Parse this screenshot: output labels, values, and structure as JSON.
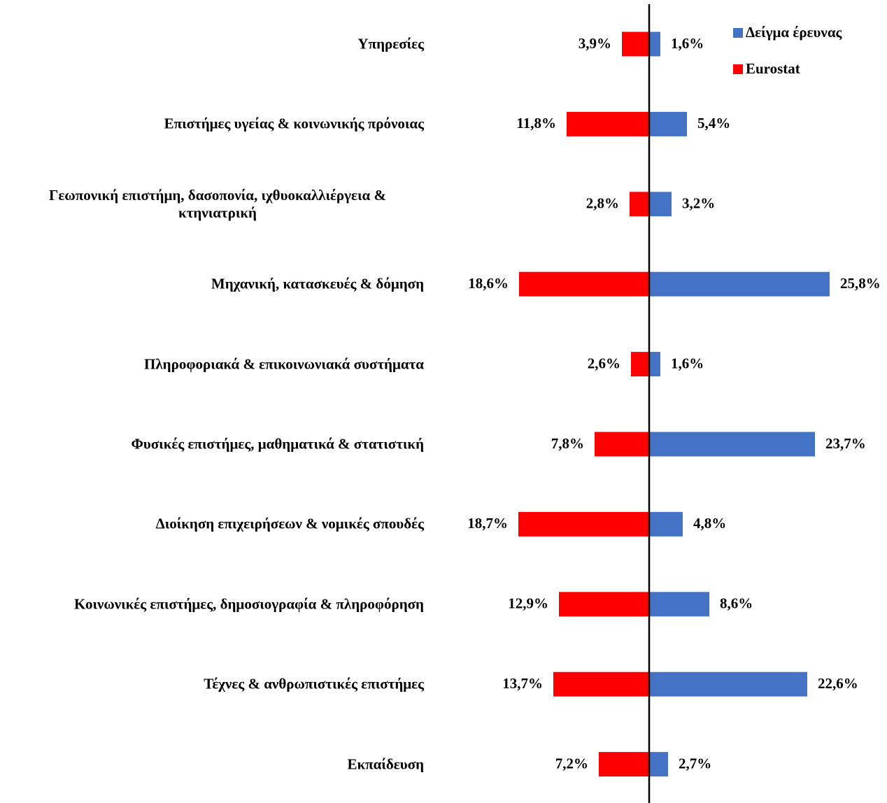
{
  "chart_data": {
    "type": "butterfly",
    "categories": [
      "Υπηρεσίες",
      "Επιστήμες υγείας & κοινωνικής πρόνοιας",
      "Γεωπονική επιστήμη, δασοπονία, ιχθυοκαλλιέργεια & κτηνιατρική",
      "Μηχανική, κατασκευές & δόμηση",
      "Πληροφοριακά & επικοινωνιακά συστήματα",
      "Φυσικές επιστήμες, μαθηματικά & στατιστική",
      "Διοίκηση επιχειρήσεων & νομικές σπουδές",
      "Κοινωνικές επιστήμες, δημοσιογραφία & πληροφόρηση",
      "Τέχνες & ανθρωπιστικές επιστήμες",
      "Εκπαίδευση"
    ],
    "series": [
      {
        "name": "Δείγμα έρευνας",
        "color": "#4472c4",
        "values": [
          1.6,
          5.4,
          3.2,
          25.8,
          1.6,
          23.7,
          4.8,
          8.6,
          22.6,
          2.7
        ],
        "value_labels": [
          "1,6%",
          "5,4%",
          "3,2%",
          "25,8%",
          "1,6%",
          "23,7%",
          "4,8%",
          "8,6%",
          "22,6%",
          "2,7%"
        ]
      },
      {
        "name": "Eurostat",
        "color": "#ff0000",
        "values": [
          3.9,
          11.8,
          2.8,
          18.6,
          2.6,
          7.8,
          18.7,
          12.9,
          13.7,
          7.2
        ],
        "value_labels": [
          "3,9%",
          "11,8%",
          "2,8%",
          "18,6%",
          "2,6%",
          "7,8%",
          "18,7%",
          "12,9%",
          "13,7%",
          "7,2%"
        ]
      }
    ],
    "xlim": [
      0,
      30
    ]
  }
}
